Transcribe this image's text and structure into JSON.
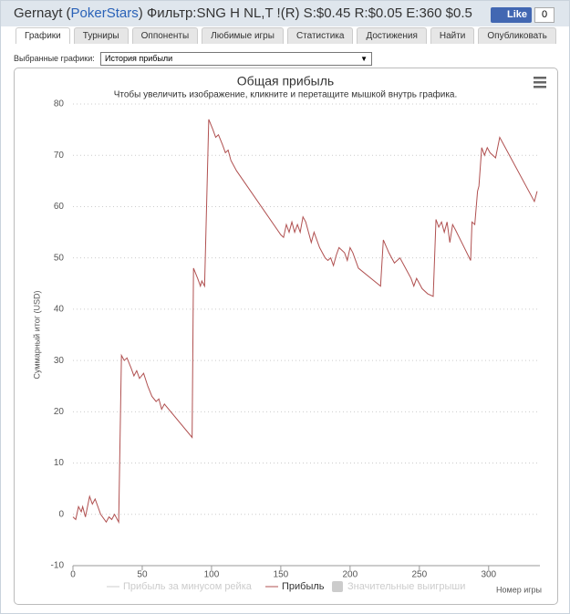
{
  "header": {
    "prefix": "Gernayt (",
    "site": "PokerStars",
    "suffix": ") Фильтр:SNG H NL,T !(R) S:$0.45 R:$0.05 E:360 $0.5",
    "like": "Like",
    "like_count": "0"
  },
  "tabs": [
    "Графики",
    "Турниры",
    "Оппоненты",
    "Любимые игры",
    "Статистика",
    "Достижения",
    "Найти",
    "Опубликовать"
  ],
  "selector": {
    "label": "Выбранные графики:",
    "value": "История прибыли"
  },
  "chart_data": {
    "type": "line",
    "title": "Общая прибыль",
    "subtitle": "Чтобы увеличить изображение, кликните и перетащите мышкой внутрь графика.",
    "y_label": "Суммарный итог (USD)",
    "x_label": "Номер игры",
    "xlim": [
      0,
      337
    ],
    "xticks": [
      0,
      50,
      100,
      150,
      200,
      250,
      300
    ],
    "ylim": [
      -10,
      80
    ],
    "yticks": [
      -10,
      0,
      10,
      20,
      30,
      40,
      50,
      60,
      70,
      80
    ],
    "grid": true,
    "series": [
      {
        "name": "Прибыль",
        "color": "#b05050",
        "x": [
          0,
          2,
          4,
          6,
          7,
          9,
          12,
          14,
          16,
          20,
          24,
          26,
          28,
          30,
          33,
          35,
          37,
          39,
          42,
          44,
          46,
          48,
          51,
          54,
          57,
          60,
          62,
          64,
          66,
          86,
          87,
          90,
          92,
          93,
          95,
          98,
          101,
          103,
          105,
          108,
          110,
          112,
          114,
          118,
          150,
          152,
          154,
          156,
          158,
          160,
          162,
          164,
          166,
          168,
          172,
          174,
          178,
          182,
          184,
          186,
          188,
          190,
          192,
          196,
          198,
          200,
          202,
          206,
          222,
          224,
          228,
          232,
          236,
          240,
          244,
          246,
          248,
          252,
          256,
          260,
          262,
          264,
          266,
          268,
          270,
          272,
          274,
          276,
          287,
          288,
          290,
          292,
          293,
          295,
          297,
          299,
          301,
          305,
          308,
          310,
          333,
          335
        ],
        "values": [
          -0.5,
          -1,
          1.5,
          0.5,
          1.5,
          -0.5,
          3.5,
          2,
          3,
          0,
          -1.5,
          -0.5,
          -1,
          0,
          -1.5,
          31,
          30,
          30.5,
          28.5,
          27,
          28,
          26.5,
          27.5,
          25,
          23,
          22,
          22.5,
          20.5,
          21.5,
          15,
          48,
          46,
          44.5,
          45.5,
          44.5,
          77,
          75,
          73.5,
          74,
          72,
          70.5,
          71,
          69,
          67,
          54.5,
          54,
          56.5,
          55,
          57,
          55,
          56.5,
          55,
          58,
          57,
          53,
          55,
          52,
          50,
          49.5,
          50,
          48.5,
          50.5,
          52,
          51,
          49.5,
          52,
          51,
          48,
          44.5,
          53.5,
          51,
          49,
          50,
          48,
          46,
          44.5,
          46,
          44,
          43,
          42.5,
          57.5,
          56,
          57,
          55,
          57,
          53,
          56.5,
          55.5,
          49.5,
          57,
          56.5,
          63,
          64,
          71.5,
          70,
          71.5,
          70.5,
          69.5,
          73.5,
          72.5,
          61,
          63
        ]
      }
    ],
    "hidden_series": [
      {
        "name": "Прибыль за минусом рейка",
        "color": "#cccccc"
      },
      {
        "name": "Значительные выигрыши",
        "color": "#cccccc"
      }
    ]
  }
}
